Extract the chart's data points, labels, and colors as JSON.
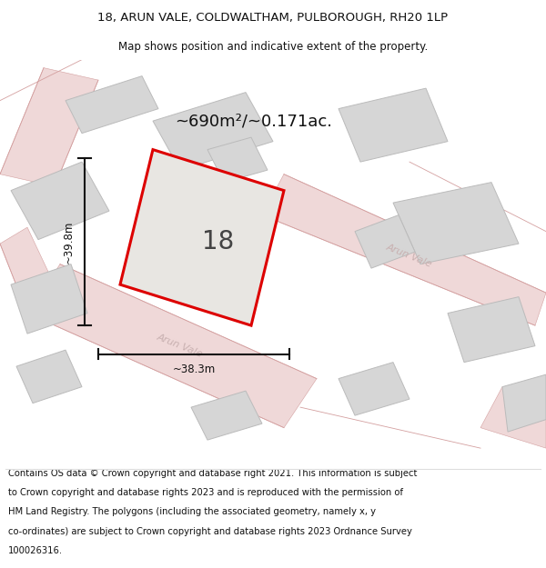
{
  "title_line1": "18, ARUN VALE, COLDWALTHAM, PULBOROUGH, RH20 1LP",
  "title_line2": "Map shows position and indicative extent of the property.",
  "area_text": "~690m²/~0.171ac.",
  "number_label": "18",
  "width_label": "~38.3m",
  "height_label": "~39.8m",
  "street_label_diag": "Arun Vale",
  "street_label_lower": "Arun Vale",
  "footer_lines": [
    "Contains OS data © Crown copyright and database right 2021. This information is subject",
    "to Crown copyright and database rights 2023 and is reproduced with the permission of",
    "HM Land Registry. The polygons (including the associated geometry, namely x, y",
    "co-ordinates) are subject to Crown copyright and database rights 2023 Ordnance Survey",
    "100026316."
  ],
  "bg_color": "#ffffff",
  "map_bg": "#f2f0ec",
  "building_fill": "#d6d6d6",
  "building_edge": "#bbbbbb",
  "road_fill": "#efd8d8",
  "road_edge": "#d4a0a0",
  "plot_fill": "#e8e6e2",
  "plot_edge": "#dd0000",
  "dim_color": "#111111",
  "title_color": "#111111",
  "footer_color": "#111111",
  "area_color": "#111111",
  "street_color": "#c8b0b0"
}
